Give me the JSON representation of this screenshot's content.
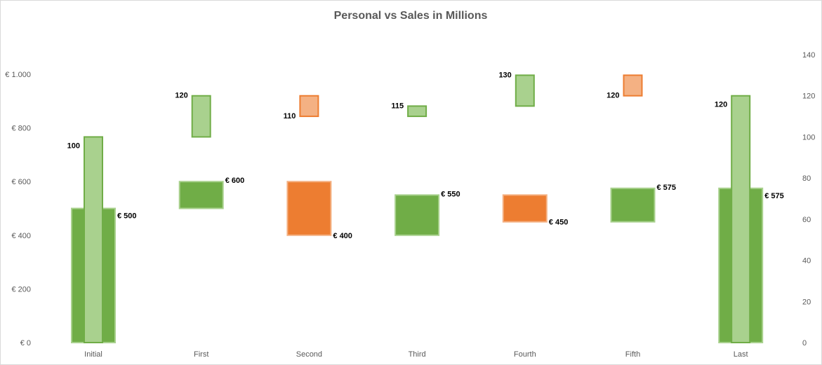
{
  "chart_data": {
    "type": "bar",
    "title": "Personal vs Sales in Millions",
    "categories": [
      "Initial",
      "First",
      "Second",
      "Third",
      "Fourth",
      "Fifth",
      "Last"
    ],
    "primary_axis": {
      "ticks": [
        "€ 0",
        "€ 200",
        "€ 400",
        "€ 600",
        "€ 800",
        "€ 1.000"
      ],
      "tick_values": [
        0,
        200,
        400,
        600,
        800,
        1000
      ],
      "ylim": [
        0,
        1000
      ]
    },
    "secondary_axis": {
      "ticks": [
        "0",
        "20",
        "40",
        "60",
        "80",
        "100",
        "120",
        "140"
      ],
      "tick_values": [
        0,
        20,
        40,
        60,
        80,
        100,
        120,
        140
      ],
      "ylim": [
        0,
        140
      ]
    },
    "sales_waterfall": [
      {
        "category": "Initial",
        "from": 0,
        "to": 500,
        "label": "€ 500",
        "kind": "total"
      },
      {
        "category": "First",
        "from": 500,
        "to": 600,
        "label": "€ 600",
        "kind": "increase"
      },
      {
        "category": "Second",
        "from": 600,
        "to": 400,
        "label": "€ 400",
        "kind": "decrease"
      },
      {
        "category": "Third",
        "from": 400,
        "to": 550,
        "label": "€ 550",
        "kind": "increase"
      },
      {
        "category": "Fourth",
        "from": 550,
        "to": 450,
        "label": "€ 450",
        "kind": "decrease"
      },
      {
        "category": "Fifth",
        "from": 450,
        "to": 575,
        "label": "€ 575",
        "kind": "increase"
      },
      {
        "category": "Last",
        "from": 0,
        "to": 575,
        "label": "€ 575",
        "kind": "total"
      }
    ],
    "personal_waterfall": [
      {
        "category": "Initial",
        "from": 0,
        "to": 100,
        "label": "100",
        "kind": "total"
      },
      {
        "category": "First",
        "from": 100,
        "to": 120,
        "label": "120",
        "kind": "increase"
      },
      {
        "category": "Second",
        "from": 120,
        "to": 110,
        "label": "110",
        "kind": "decrease"
      },
      {
        "category": "Third",
        "from": 110,
        "to": 115,
        "label": "115",
        "kind": "increase"
      },
      {
        "category": "Fourth",
        "from": 115,
        "to": 130,
        "label": "130",
        "kind": "increase"
      },
      {
        "category": "Fifth",
        "from": 130,
        "to": 120,
        "label": "120",
        "kind": "decrease"
      },
      {
        "category": "Last",
        "from": 0,
        "to": 120,
        "label": "120",
        "kind": "total"
      }
    ],
    "colors": {
      "sales_increase": "#70ad47",
      "sales_increase_border": "#a9d18e",
      "sales_decrease": "#ed7d31",
      "sales_decrease_border": "#f4b183",
      "personal_increase": "#a9d18e",
      "personal_increase_border": "#70ad47",
      "personal_decrease": "#f4b183",
      "personal_decrease_border": "#ed7d31",
      "text": "#595959"
    },
    "grid": false,
    "legend": "none"
  }
}
